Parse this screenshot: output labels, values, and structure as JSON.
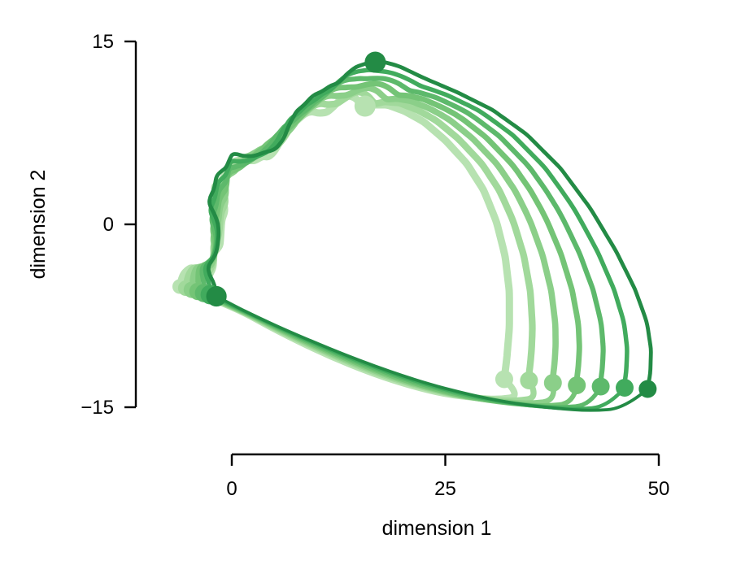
{
  "chart_data": {
    "type": "line",
    "title": "",
    "xlabel": "dimension 1",
    "ylabel": "dimension 2",
    "xlim": [
      0,
      50
    ],
    "ylim": [
      -15,
      15
    ],
    "xticks": [
      {
        "value": 0,
        "label": "0"
      },
      {
        "value": 25,
        "label": "25"
      },
      {
        "value": 50,
        "label": "50"
      }
    ],
    "yticks": [
      {
        "value": 15,
        "label": "15"
      },
      {
        "value": 0,
        "label": "0"
      },
      {
        "value": -15,
        "label": "−15"
      }
    ],
    "grid": false,
    "legend": "none",
    "series": [
      {
        "color": "#b7e2b1",
        "scale": 1.0,
        "end": [
          31.9,
          -12.7
        ],
        "points": [
          [
            -6.1,
            -5.1
          ],
          [
            -5.8,
            -4.2
          ],
          [
            -4.9,
            -3.5
          ],
          [
            -3.8,
            -3.8
          ],
          [
            -2.9,
            -4.5
          ],
          [
            -2.2,
            -3.6
          ],
          [
            -2.1,
            -2.2
          ],
          [
            -1.4,
            -1.9
          ],
          [
            -1.3,
            -0.8
          ],
          [
            -1.2,
            0.4
          ],
          [
            -0.7,
            1.2
          ],
          [
            -1.1,
            1.9
          ],
          [
            -1.6,
            2.6
          ],
          [
            -2.2,
            3.0
          ],
          [
            -1.0,
            3.7
          ],
          [
            -0.4,
            4.7
          ],
          [
            0.3,
            5.2
          ],
          [
            1.6,
            5.3
          ],
          [
            2.6,
            5.2
          ],
          [
            3.6,
            5.6
          ],
          [
            4.4,
            5.5
          ],
          [
            5.3,
            6.3
          ],
          [
            6.0,
            7.4
          ],
          [
            6.8,
            8.1
          ],
          [
            7.6,
            8.5
          ],
          [
            8.4,
            9.0
          ],
          [
            9.2,
            9.3
          ],
          [
            10.2,
            9.1
          ],
          [
            11.2,
            9.2
          ],
          [
            12.1,
            9.8
          ],
          [
            13.0,
            10.4
          ],
          [
            13.8,
            10.6
          ],
          [
            14.6,
            10.3
          ],
          [
            15.4,
            9.5
          ],
          [
            16.5,
            9.8
          ],
          [
            18.2,
            9.8
          ],
          [
            20.2,
            9.3
          ],
          [
            22.5,
            8.4
          ],
          [
            25.0,
            6.9
          ],
          [
            27.5,
            5.0
          ],
          [
            29.5,
            2.8
          ],
          [
            31.0,
            0.2
          ],
          [
            32.0,
            -2.6
          ],
          [
            32.5,
            -5.5
          ],
          [
            32.5,
            -8.5
          ],
          [
            32.2,
            -11.0
          ],
          [
            31.9,
            -12.7
          ]
        ]
      },
      {
        "color": "#a1d99b",
        "scale": 1.07,
        "end": [
          34.8,
          -12.8
        ]
      },
      {
        "color": "#8bcf89",
        "scale": 1.14,
        "end": [
          37.6,
          -13.0
        ]
      },
      {
        "color": "#74c476",
        "scale": 1.21,
        "end": [
          40.4,
          -13.2
        ]
      },
      {
        "color": "#5db96b",
        "scale": 1.29,
        "end": [
          43.2,
          -13.3
        ]
      },
      {
        "color": "#41ab5d",
        "scale": 1.37,
        "end": [
          46.0,
          -13.4
        ]
      },
      {
        "color": "#238b45",
        "scale": 1.45,
        "end": [
          48.7,
          -13.5
        ],
        "points": [
          [
            -1.8,
            -5.9
          ],
          [
            -2.0,
            -4.9
          ],
          [
            -2.6,
            -4.2
          ],
          [
            -2.8,
            -3.5
          ],
          [
            -2.3,
            -2.9
          ],
          [
            -1.8,
            -2.4
          ],
          [
            -1.6,
            -1.5
          ],
          [
            -1.5,
            -0.2
          ],
          [
            -1.8,
            0.5
          ],
          [
            -2.3,
            1.2
          ],
          [
            -2.8,
            1.9
          ],
          [
            -1.9,
            3.1
          ],
          [
            -2.0,
            3.7
          ],
          [
            -1.6,
            4.2
          ],
          [
            -0.7,
            4.6
          ],
          [
            0.1,
            5.9
          ],
          [
            1.3,
            5.6
          ],
          [
            2.6,
            5.6
          ],
          [
            3.8,
            5.9
          ],
          [
            5.0,
            6.1
          ],
          [
            6.0,
            6.9
          ],
          [
            6.8,
            8.3
          ],
          [
            7.6,
            9.3
          ],
          [
            8.5,
            9.8
          ],
          [
            9.5,
            10.6
          ],
          [
            10.6,
            10.9
          ],
          [
            11.6,
            11.4
          ],
          [
            12.6,
            11.6
          ],
          [
            13.4,
            12.3
          ],
          [
            14.5,
            12.9
          ],
          [
            15.7,
            13.2
          ],
          [
            17.3,
            13.4
          ],
          [
            19.5,
            13.0
          ],
          [
            22.5,
            12.0
          ],
          [
            26.5,
            10.8
          ],
          [
            30.5,
            9.4
          ],
          [
            34.5,
            7.4
          ],
          [
            38.5,
            4.6
          ],
          [
            42.0,
            1.3
          ],
          [
            45.0,
            -2.2
          ],
          [
            47.2,
            -5.3
          ],
          [
            48.6,
            -8.0
          ],
          [
            49.1,
            -10.3
          ],
          [
            49.0,
            -12.2
          ],
          [
            48.7,
            -13.5
          ]
        ]
      }
    ],
    "return_path": [
      [
        -1.8,
        -5.9
      ],
      [
        2.0,
        -7.0
      ],
      [
        8.0,
        -8.9
      ],
      [
        15.0,
        -10.9
      ],
      [
        22.0,
        -12.6
      ],
      [
        28.0,
        -13.7
      ],
      [
        33.0,
        -14.4
      ],
      [
        38.0,
        -14.8
      ],
      [
        42.0,
        -15.0
      ],
      [
        46.0,
        -14.8
      ],
      [
        48.7,
        -13.5
      ]
    ],
    "start_markers": [
      [
        16.8,
        13.3
      ],
      [
        15.6,
        9.7
      ]
    ]
  }
}
